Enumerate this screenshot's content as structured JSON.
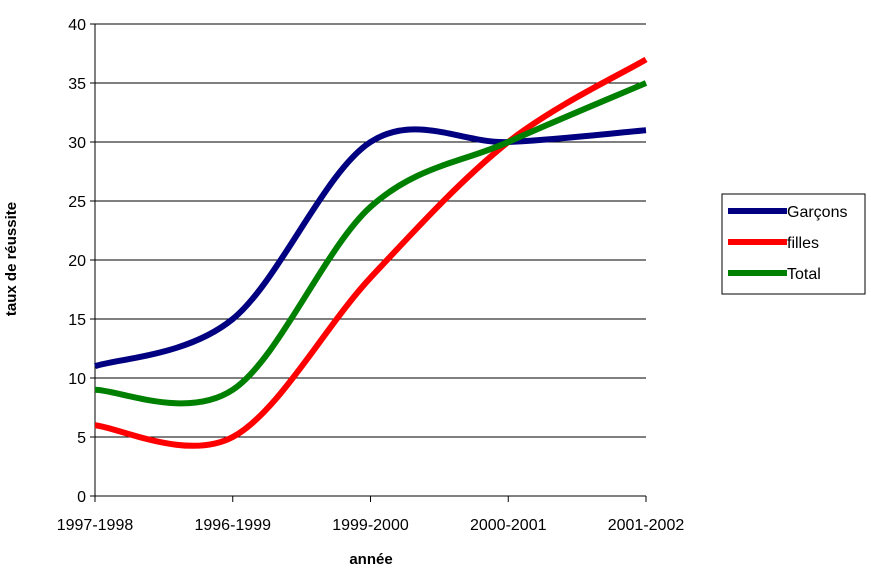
{
  "chart_data": {
    "type": "line",
    "title": "",
    "xlabel": "année",
    "ylabel": "taux de réussite",
    "categories": [
      "1997-1998",
      "1996-1999",
      "1999-2000",
      "2000-2001",
      "2001-2002"
    ],
    "ylim": [
      0,
      40
    ],
    "yticks": [
      "0",
      "5",
      "10",
      "15",
      "20",
      "25",
      "30",
      "35",
      "40"
    ],
    "grid": true,
    "smooth": true,
    "legend_position": "right",
    "series": [
      {
        "name": "Garçons",
        "values": [
          11,
          15,
          30,
          30,
          31
        ],
        "color": "#000080"
      },
      {
        "name": "filles",
        "values": [
          6,
          5,
          18.5,
          30,
          37
        ],
        "color": "#ff0000"
      },
      {
        "name": "Total",
        "values": [
          9,
          9,
          24.5,
          30,
          35
        ],
        "color": "#008000"
      }
    ]
  }
}
